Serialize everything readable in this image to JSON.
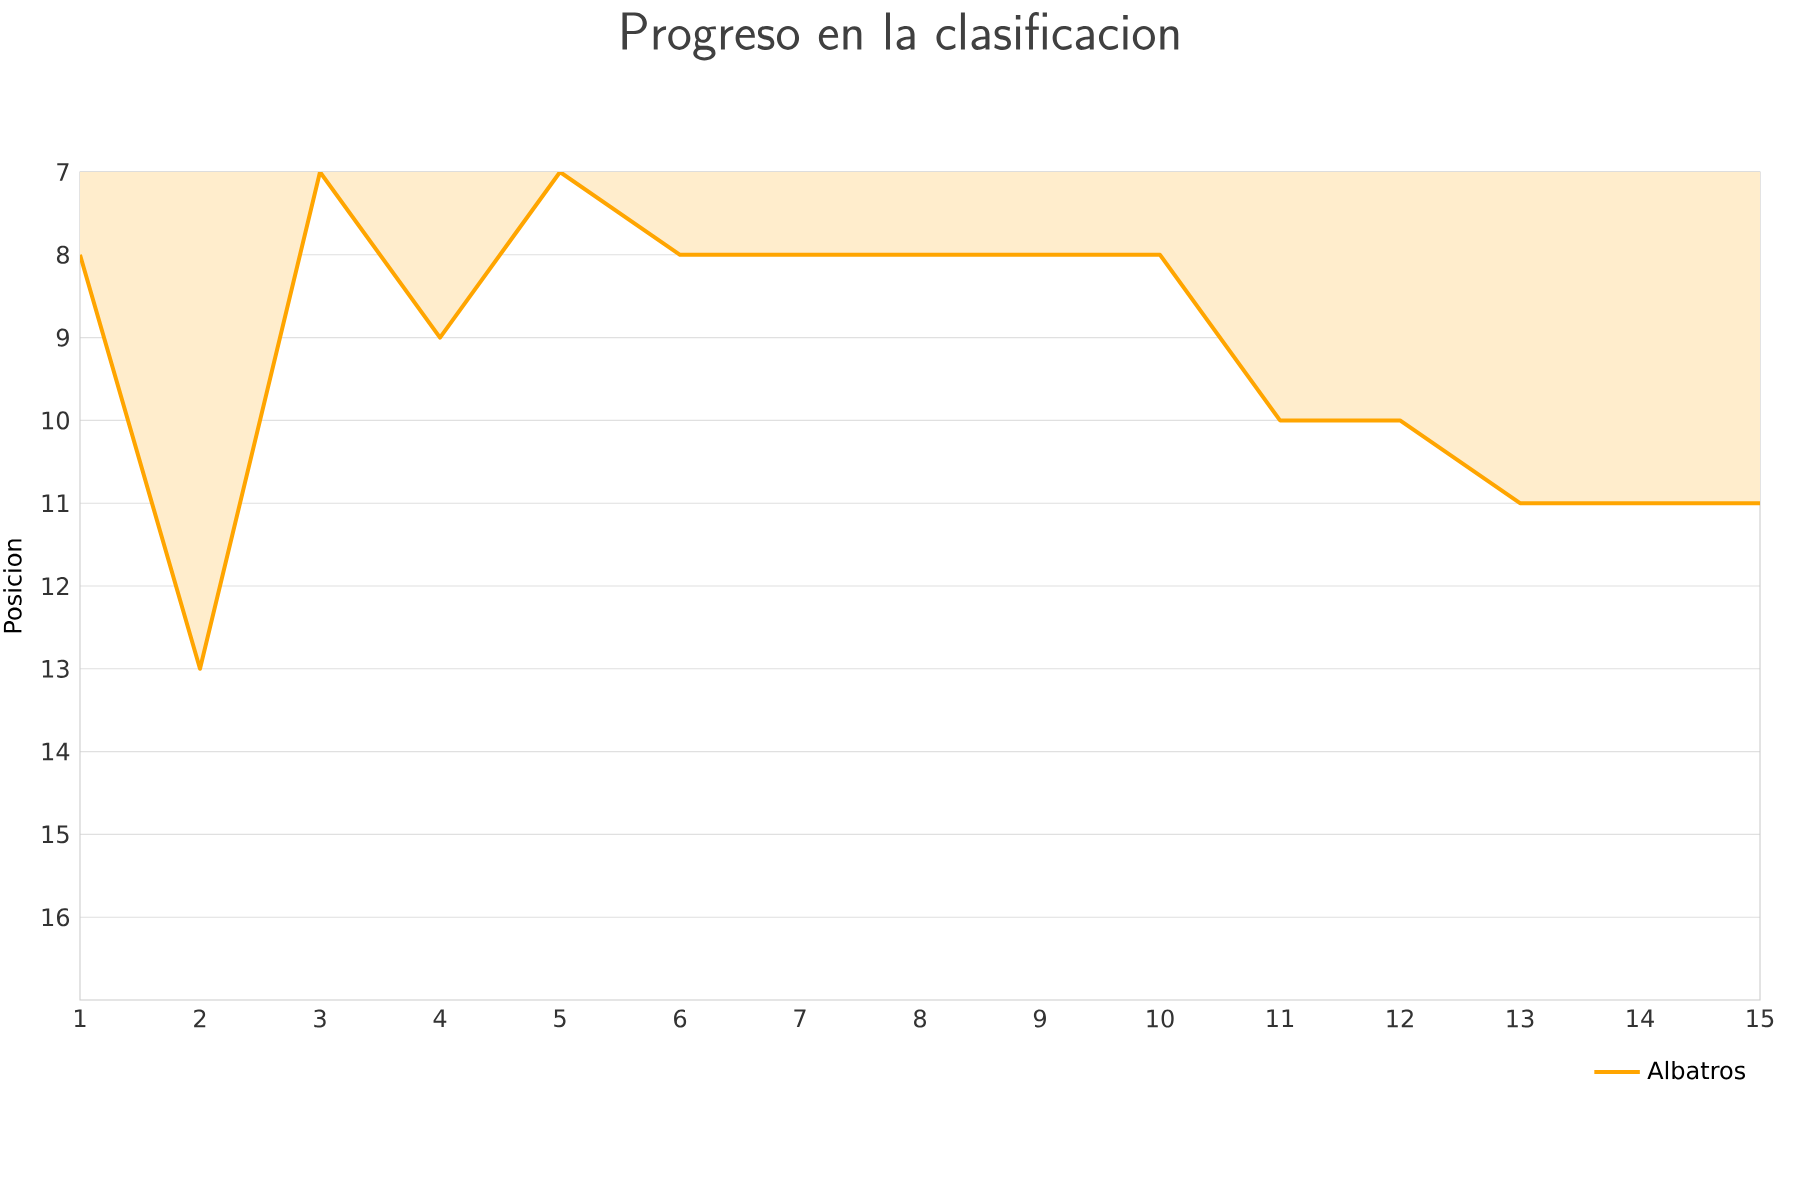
{
  "chart_data": {
    "type": "area",
    "title": "Progreso en la clasificacion",
    "ylabel": "Posicion",
    "x": [
      1,
      2,
      3,
      4,
      5,
      6,
      7,
      8,
      9,
      10,
      11,
      12,
      13,
      14,
      15
    ],
    "series": [
      {
        "name": "Albatros",
        "color": "#ffa500",
        "values": [
          8,
          13,
          7,
          9,
          7,
          8,
          8,
          8,
          8,
          8,
          10,
          10,
          11,
          11,
          11
        ]
      }
    ],
    "xlim": [
      1,
      15
    ],
    "xticks": [
      1,
      2,
      3,
      4,
      5,
      6,
      7,
      8,
      9,
      10,
      11,
      12,
      13,
      14,
      15
    ],
    "ylim": [
      17,
      7
    ],
    "yticks": [
      7,
      8,
      9,
      10,
      11,
      12,
      13,
      14,
      15,
      16
    ],
    "grid": "y",
    "legend": "bottom right",
    "marker": "none"
  }
}
